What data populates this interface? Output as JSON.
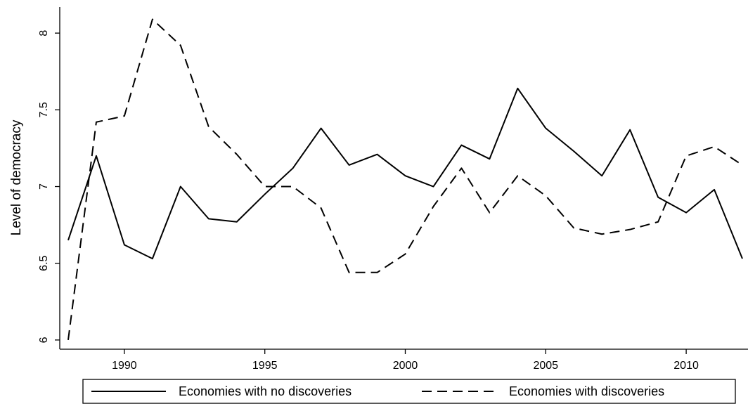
{
  "chart_data": {
    "type": "line",
    "y_label": "Level of democracy",
    "x": [
      1988,
      1989,
      1990,
      1991,
      1992,
      1993,
      1994,
      1995,
      1996,
      1997,
      1998,
      1999,
      2000,
      2001,
      2002,
      2003,
      2004,
      2005,
      2006,
      2007,
      2008,
      2009,
      2010,
      2011,
      2012
    ],
    "series": [
      {
        "name": "Economies with no discoveries",
        "color": "#000000",
        "line_style": "solid",
        "values": [
          6.65,
          7.2,
          6.62,
          6.53,
          7.0,
          6.79,
          6.77,
          6.95,
          7.12,
          7.38,
          7.14,
          7.21,
          7.07,
          7.0,
          7.27,
          7.18,
          7.64,
          7.38,
          7.23,
          7.07,
          7.37,
          6.93,
          6.83,
          6.98,
          6.53
        ]
      },
      {
        "name": "Economies with discoveries",
        "color": "#000000",
        "line_style": "dashed",
        "values": [
          6.0,
          7.42,
          7.46,
          8.09,
          7.92,
          7.39,
          7.21,
          7.0,
          7.0,
          6.86,
          6.44,
          6.44,
          6.56,
          6.87,
          7.12,
          6.83,
          7.07,
          6.94,
          6.73,
          6.69,
          6.72,
          6.77,
          7.2,
          7.26,
          7.14
        ]
      }
    ],
    "xlim": [
      1987.7,
      2012.2
    ],
    "xticks": [
      1990,
      1995,
      2000,
      2005,
      2010
    ],
    "ylim": [
      5.94,
      8.17
    ],
    "yticks": [
      6,
      6.5,
      7,
      7.5,
      8
    ],
    "grid": false,
    "legend": "bottom"
  }
}
